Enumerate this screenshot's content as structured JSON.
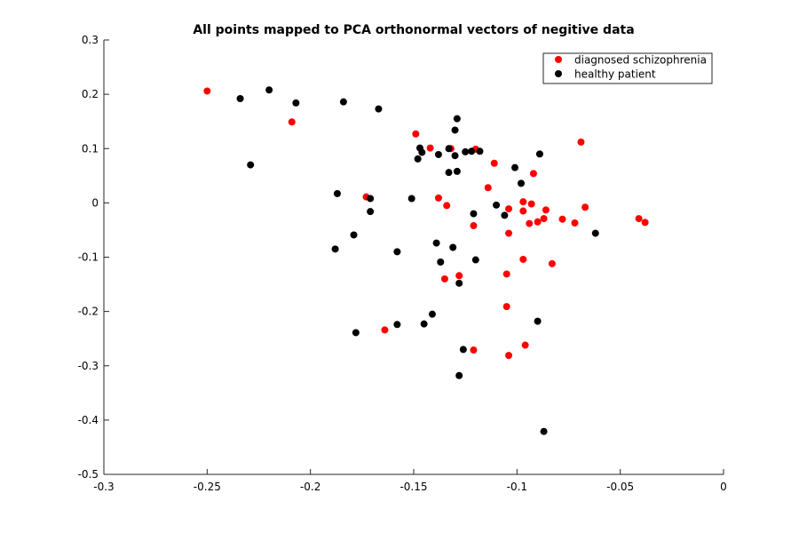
{
  "chart_data": {
    "type": "scatter",
    "title": "All points mapped to PCA orthonormal vectors of negitive data",
    "xlabel": "",
    "ylabel": "",
    "xlim": [
      -0.3,
      0
    ],
    "ylim": [
      -0.5,
      0.3
    ],
    "xticks": [
      "-0.3",
      "-0.25",
      "-0.2",
      "-0.15",
      "-0.1",
      "-0.05",
      "0"
    ],
    "yticks": [
      "0.3",
      "0.2",
      "0.1",
      "0",
      "-0.1",
      "-0.2",
      "-0.3",
      "-0.4",
      "-0.5"
    ],
    "grid": false,
    "legend_position": "top-right",
    "series": [
      {
        "name": "diagnosed schizophrenia",
        "color": "#ff0000",
        "points": [
          [
            -0.25,
            0.206
          ],
          [
            -0.209,
            0.149
          ],
          [
            -0.149,
            0.127
          ],
          [
            -0.142,
            0.101
          ],
          [
            -0.132,
            0.1
          ],
          [
            -0.12,
            0.099
          ],
          [
            -0.111,
            0.073
          ],
          [
            -0.173,
            0.011
          ],
          [
            -0.138,
            0.009
          ],
          [
            -0.134,
            -0.005
          ],
          [
            -0.114,
            0.028
          ],
          [
            -0.069,
            0.112
          ],
          [
            -0.092,
            0.054
          ],
          [
            -0.104,
            -0.011
          ],
          [
            -0.097,
            0.002
          ],
          [
            -0.093,
            -0.002
          ],
          [
            -0.097,
            -0.015
          ],
          [
            -0.086,
            -0.013
          ],
          [
            -0.094,
            -0.038
          ],
          [
            -0.09,
            -0.035
          ],
          [
            -0.087,
            -0.029
          ],
          [
            -0.078,
            -0.03
          ],
          [
            -0.072,
            -0.037
          ],
          [
            -0.067,
            -0.008
          ],
          [
            -0.041,
            -0.029
          ],
          [
            -0.038,
            -0.036
          ],
          [
            -0.121,
            -0.042
          ],
          [
            -0.104,
            -0.056
          ],
          [
            -0.097,
            -0.104
          ],
          [
            -0.083,
            -0.112
          ],
          [
            -0.105,
            -0.131
          ],
          [
            -0.128,
            -0.134
          ],
          [
            -0.135,
            -0.14
          ],
          [
            -0.105,
            -0.191
          ],
          [
            -0.164,
            -0.234
          ],
          [
            -0.096,
            -0.262
          ],
          [
            -0.121,
            -0.271
          ],
          [
            -0.104,
            -0.281
          ]
        ]
      },
      {
        "name": "healthy patient",
        "color": "#000000",
        "points": [
          [
            -0.234,
            0.192
          ],
          [
            -0.22,
            0.208
          ],
          [
            -0.207,
            0.184
          ],
          [
            -0.184,
            0.186
          ],
          [
            -0.167,
            0.173
          ],
          [
            -0.229,
            0.07
          ],
          [
            -0.129,
            0.155
          ],
          [
            -0.13,
            0.134
          ],
          [
            -0.147,
            0.101
          ],
          [
            -0.146,
            0.093
          ],
          [
            -0.148,
            0.081
          ],
          [
            -0.138,
            0.089
          ],
          [
            -0.133,
            0.1
          ],
          [
            -0.13,
            0.087
          ],
          [
            -0.125,
            0.094
          ],
          [
            -0.122,
            0.095
          ],
          [
            -0.118,
            0.095
          ],
          [
            -0.089,
            0.09
          ],
          [
            -0.101,
            0.065
          ],
          [
            -0.129,
            0.058
          ],
          [
            -0.133,
            0.056
          ],
          [
            -0.098,
            0.036
          ],
          [
            -0.187,
            0.017
          ],
          [
            -0.171,
            0.008
          ],
          [
            -0.151,
            0.008
          ],
          [
            -0.171,
            -0.016
          ],
          [
            -0.11,
            -0.004
          ],
          [
            -0.106,
            -0.023
          ],
          [
            -0.121,
            -0.02
          ],
          [
            -0.062,
            -0.056
          ],
          [
            -0.179,
            -0.059
          ],
          [
            -0.188,
            -0.085
          ],
          [
            -0.139,
            -0.074
          ],
          [
            -0.131,
            -0.082
          ],
          [
            -0.158,
            -0.09
          ],
          [
            -0.137,
            -0.109
          ],
          [
            -0.12,
            -0.105
          ],
          [
            -0.128,
            -0.148
          ],
          [
            -0.141,
            -0.205
          ],
          [
            -0.145,
            -0.223
          ],
          [
            -0.158,
            -0.224
          ],
          [
            -0.178,
            -0.239
          ],
          [
            -0.09,
            -0.218
          ],
          [
            -0.126,
            -0.27
          ],
          [
            -0.128,
            -0.318
          ],
          [
            -0.087,
            -0.421
          ]
        ]
      }
    ]
  }
}
